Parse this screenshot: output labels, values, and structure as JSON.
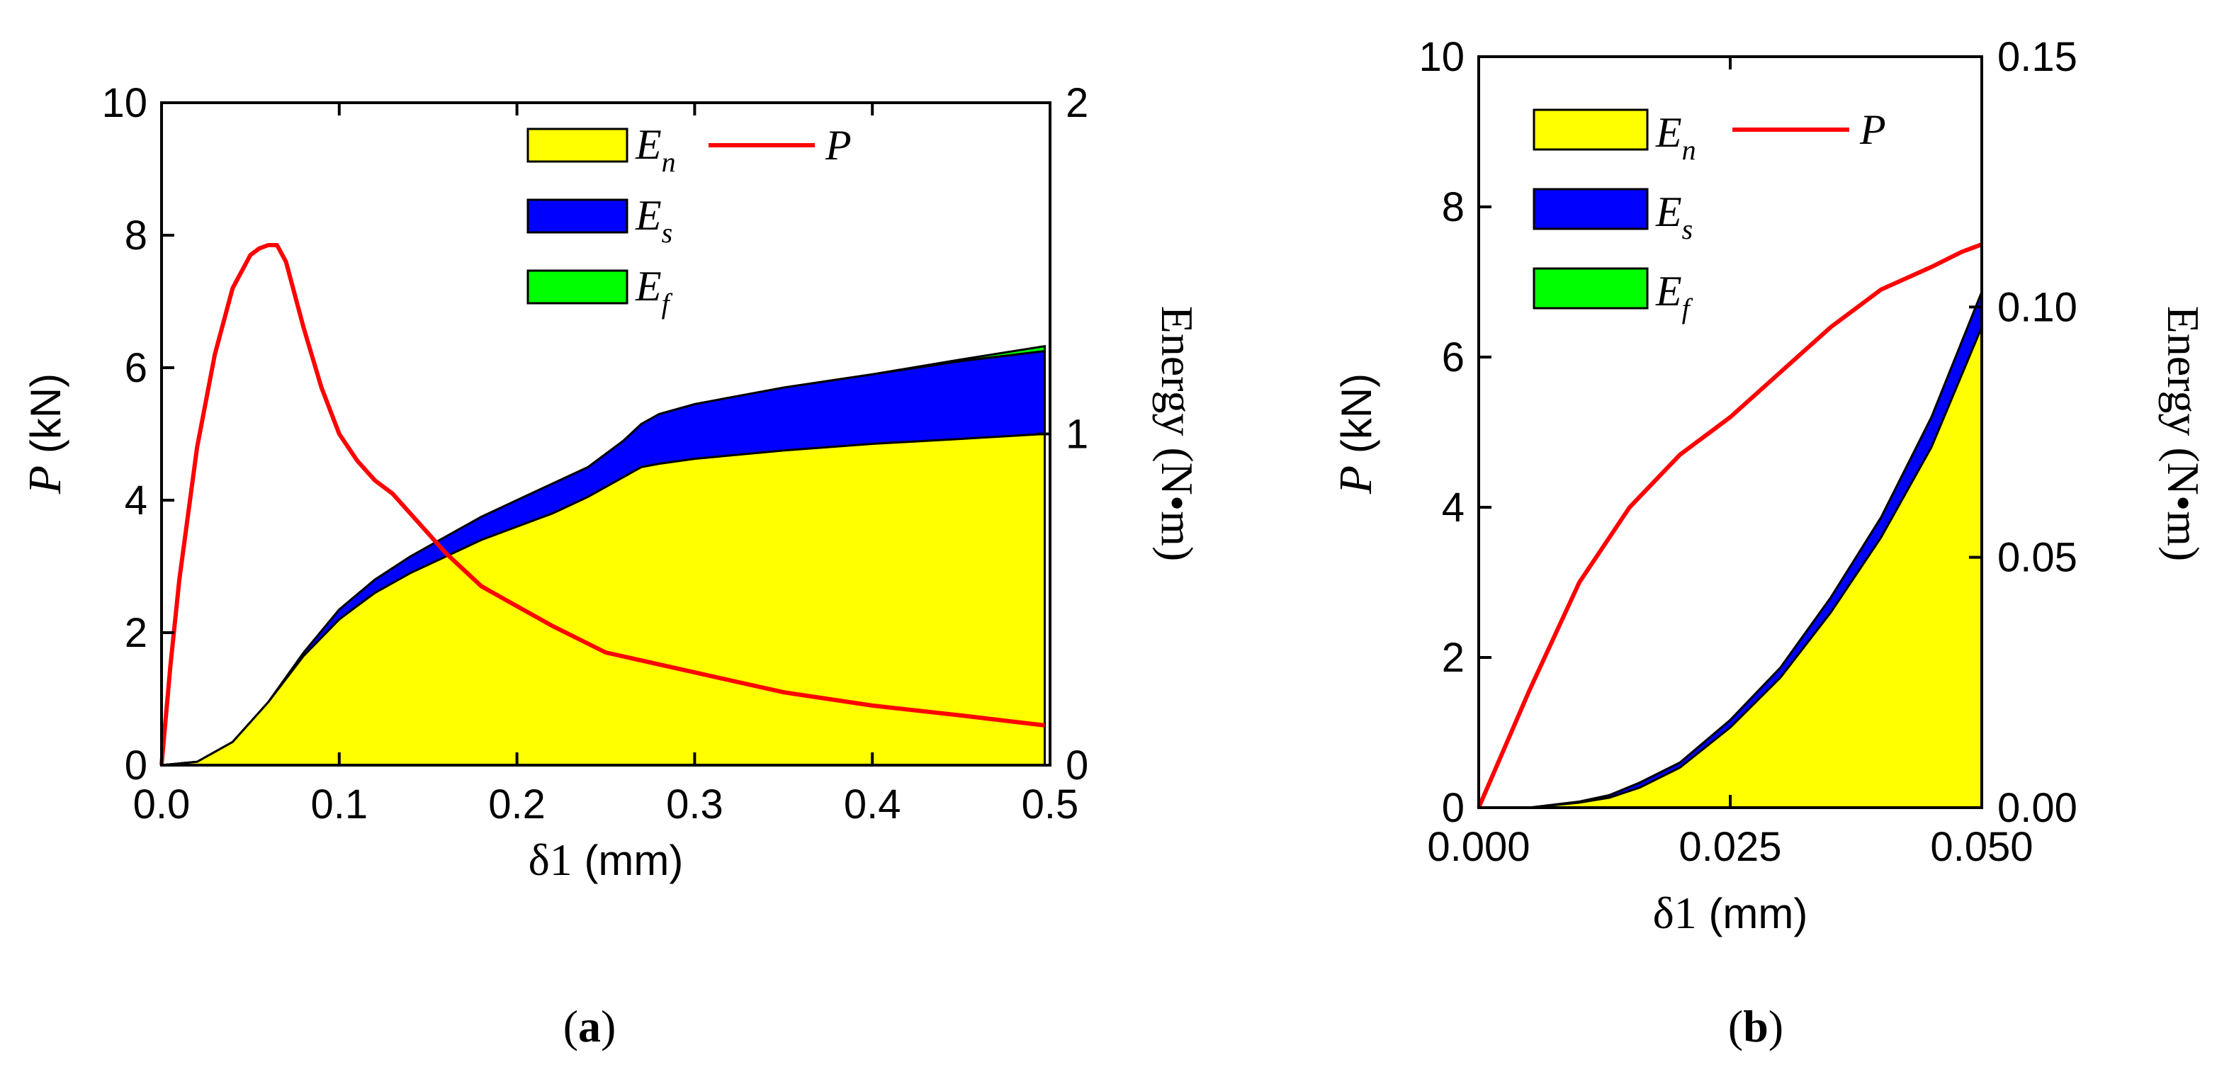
{
  "chart_data": [
    {
      "type": "area",
      "panel": "a",
      "caption": {
        "open": "(",
        "letter": "a",
        "close": ")"
      },
      "xlabel": {
        "symbol": "δ1",
        "unit": " (mm)"
      },
      "ylabel_left": {
        "symbol": "P",
        "unit": " (kN)"
      },
      "ylabel_right": "Energy (N•m)",
      "xlim": [
        0,
        0.5
      ],
      "ylim_left": [
        0,
        10
      ],
      "ylim_right": [
        0,
        2
      ],
      "xticks": [
        "0.0",
        "0.1",
        "0.2",
        "0.3",
        "0.4",
        "0.5"
      ],
      "xtick_values": [
        0,
        0.1,
        0.2,
        0.3,
        0.4,
        0.5
      ],
      "yticks_left": [
        "0",
        "2",
        "4",
        "6",
        "8",
        "10"
      ],
      "ytick_left_values": [
        0,
        2,
        4,
        6,
        8,
        10
      ],
      "yticks_right": [
        "0",
        "1",
        "2"
      ],
      "ytick_right_values": [
        0,
        1,
        2
      ],
      "legend": [
        {
          "base": "E",
          "sub": "n",
          "color": "#ffff00",
          "kind": "area"
        },
        {
          "base": "E",
          "sub": "s",
          "color": "#0000ff",
          "kind": "area"
        },
        {
          "base": "E",
          "sub": "f",
          "color": "#00ff00",
          "kind": "area"
        },
        {
          "base": "P",
          "sub": "",
          "color": "#ff0000",
          "kind": "line"
        }
      ],
      "x": [
        0,
        0.02,
        0.04,
        0.06,
        0.08,
        0.1,
        0.12,
        0.14,
        0.16,
        0.18,
        0.2,
        0.22,
        0.24,
        0.26,
        0.27,
        0.28,
        0.3,
        0.35,
        0.4,
        0.45,
        0.497
      ],
      "energy_n": [
        0,
        0.01,
        0.07,
        0.19,
        0.33,
        0.44,
        0.52,
        0.58,
        0.63,
        0.68,
        0.72,
        0.76,
        0.81,
        0.87,
        0.9,
        0.91,
        0.925,
        0.95,
        0.97,
        0.985,
        1.0
      ],
      "energy_ns": [
        0,
        0.01,
        0.07,
        0.19,
        0.34,
        0.47,
        0.56,
        0.63,
        0.69,
        0.75,
        0.8,
        0.85,
        0.9,
        0.98,
        1.03,
        1.06,
        1.09,
        1.14,
        1.18,
        1.22,
        1.25
      ],
      "energy_total": [
        0,
        0.01,
        0.07,
        0.19,
        0.34,
        0.47,
        0.56,
        0.63,
        0.69,
        0.75,
        0.8,
        0.85,
        0.9,
        0.98,
        1.03,
        1.06,
        1.09,
        1.14,
        1.18,
        1.225,
        1.265
      ],
      "p_x": [
        0,
        0.005,
        0.01,
        0.02,
        0.03,
        0.04,
        0.05,
        0.055,
        0.06,
        0.065,
        0.07,
        0.08,
        0.09,
        0.1,
        0.11,
        0.12,
        0.13,
        0.14,
        0.15,
        0.16,
        0.18,
        0.2,
        0.22,
        0.25,
        0.3,
        0.35,
        0.4,
        0.45,
        0.497
      ],
      "p": [
        0,
        1.5,
        2.8,
        4.8,
        6.2,
        7.2,
        7.7,
        7.8,
        7.85,
        7.85,
        7.6,
        6.6,
        5.7,
        5.0,
        4.6,
        4.3,
        4.1,
        3.8,
        3.5,
        3.2,
        2.7,
        2.4,
        2.1,
        1.7,
        1.4,
        1.1,
        0.9,
        0.75,
        0.6
      ]
    },
    {
      "type": "area",
      "panel": "b",
      "caption": {
        "open": "(",
        "letter": "b",
        "close": ")"
      },
      "xlabel": {
        "symbol": "δ1",
        "unit": " (mm)"
      },
      "ylabel_left": {
        "symbol": "P",
        "unit": " (kN)"
      },
      "ylabel_right": "Energy (N•m)",
      "xlim": [
        0,
        0.05
      ],
      "ylim_left": [
        0,
        10
      ],
      "ylim_right": [
        0,
        0.15
      ],
      "xticks": [
        "0.000",
        "0.025",
        "0.050"
      ],
      "xtick_values": [
        0,
        0.025,
        0.05
      ],
      "yticks_left": [
        "0",
        "2",
        "4",
        "6",
        "8",
        "10"
      ],
      "ytick_left_values": [
        0,
        2,
        4,
        6,
        8,
        10
      ],
      "yticks_right": [
        "0.00",
        "0.05",
        "0.10",
        "0.15"
      ],
      "ytick_right_values": [
        0,
        0.05,
        0.1,
        0.15
      ],
      "legend": [
        {
          "base": "E",
          "sub": "n",
          "color": "#ffff00",
          "kind": "area"
        },
        {
          "base": "E",
          "sub": "s",
          "color": "#0000ff",
          "kind": "area"
        },
        {
          "base": "E",
          "sub": "f",
          "color": "#00ff00",
          "kind": "area"
        },
        {
          "base": "P",
          "sub": "",
          "color": "#ff0000",
          "kind": "line"
        }
      ],
      "x": [
        0,
        0.005,
        0.01,
        0.013,
        0.016,
        0.02,
        0.025,
        0.03,
        0.035,
        0.04,
        0.045,
        0.05
      ],
      "energy_n": [
        0,
        0,
        0.001,
        0.002,
        0.004,
        0.008,
        0.016,
        0.026,
        0.039,
        0.054,
        0.072,
        0.096
      ],
      "energy_ns": [
        0,
        0,
        0.0012,
        0.0025,
        0.005,
        0.009,
        0.0175,
        0.028,
        0.042,
        0.058,
        0.078,
        0.103
      ],
      "energy_total": [
        0,
        0,
        0.0012,
        0.0025,
        0.005,
        0.009,
        0.0175,
        0.028,
        0.042,
        0.058,
        0.078,
        0.103
      ],
      "p_x": [
        0,
        0.005,
        0.01,
        0.015,
        0.02,
        0.025,
        0.03,
        0.035,
        0.04,
        0.045,
        0.048,
        0.05
      ],
      "p": [
        0,
        1.55,
        3.0,
        4.0,
        4.7,
        5.2,
        5.8,
        6.4,
        6.9,
        7.2,
        7.4,
        7.5
      ]
    }
  ]
}
